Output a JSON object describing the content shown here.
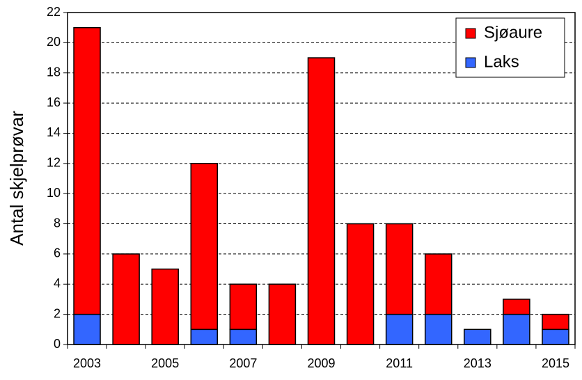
{
  "chart_data": {
    "type": "bar",
    "stacked": true,
    "ylabel": "Antal skjelprøvar",
    "categories": [
      "2003",
      null,
      "2005",
      null,
      "2007",
      null,
      "2009",
      null,
      "2011",
      null,
      "2013",
      null,
      "2015"
    ],
    "series": [
      {
        "name": "Laks",
        "color": "#3366ff",
        "values": [
          2,
          0,
          0,
          1,
          1,
          0,
          0,
          0,
          2,
          2,
          1,
          2,
          1
        ]
      },
      {
        "name": "Sjøaure",
        "color": "#ff0000",
        "values": [
          19,
          6,
          5,
          11,
          3,
          4,
          19,
          8,
          6,
          4,
          0,
          1,
          1
        ]
      }
    ],
    "ylim": [
      0,
      22
    ],
    "yticks": [
      0,
      2,
      4,
      6,
      8,
      10,
      12,
      14,
      16,
      18,
      20,
      22
    ],
    "grid": true,
    "legend": "top-right"
  }
}
